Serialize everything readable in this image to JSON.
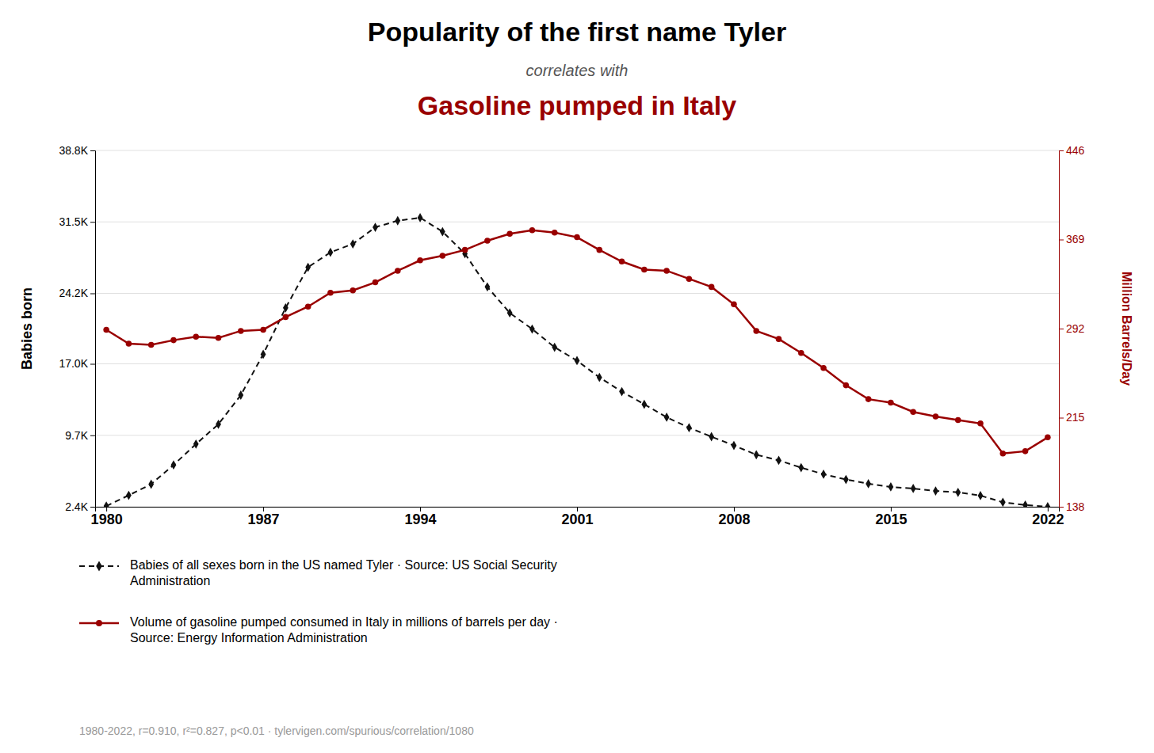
{
  "chart_data": {
    "type": "line",
    "title": "Popularity of the first name Tyler",
    "subtitle": "correlates with",
    "annotations": [
      {
        "text": "Gasoline pumped in Italy",
        "color": "#990000"
      },
      {
        "text": "1980-2022, r=0.910, r²=0.827, p<0.01 · tylervigen.com/spurious/correlation/1080"
      }
    ],
    "ylabel": "Babies born",
    "y2label": "Million Barrels/Day",
    "x": [
      1980,
      1981,
      1982,
      1983,
      1984,
      1985,
      1986,
      1987,
      1988,
      1989,
      1990,
      1991,
      1992,
      1993,
      1994,
      1995,
      1996,
      1997,
      1998,
      1999,
      2000,
      2001,
      2002,
      2003,
      2004,
      2005,
      2006,
      2007,
      2008,
      2009,
      2010,
      2011,
      2012,
      2013,
      2014,
      2015,
      2016,
      2017,
      2018,
      2019,
      2020,
      2021,
      2022
    ],
    "series": [
      {
        "name": "Babies of all sexes born in the US named Tyler · Source: US Social Security\nAdministration",
        "color": "#111111",
        "line_style": "dashed",
        "marker": "diamond",
        "values": [
          2472,
          3568,
          4705,
          6673,
          8801,
          10830,
          13806,
          17978,
          22715,
          26867,
          28388,
          29251,
          30951,
          31622,
          31931,
          30503,
          28252,
          24858,
          22199,
          20552,
          18696,
          17327,
          15615,
          14166,
          12862,
          11542,
          10474,
          9558,
          8660,
          7713,
          7135,
          6399,
          5724,
          5182,
          4753,
          4426,
          4267,
          4012,
          3875,
          3536,
          2858,
          2581,
          2408
        ]
      },
      {
        "name": "Volume of gasoline pumped consumed in Italy in millions of barrels per day ·\nSource: Energy Information Administration",
        "color": "#990000",
        "line_style": "solid",
        "marker": "circle",
        "axis": "y2",
        "values": [
          291,
          279,
          278,
          282,
          285,
          284,
          290,
          291,
          302,
          311,
          323,
          325,
          332,
          342,
          351,
          355,
          360,
          368,
          374,
          377,
          375,
          371,
          360,
          350,
          343,
          342,
          335,
          328,
          313,
          290,
          283,
          271,
          258,
          243,
          231,
          228,
          220,
          216,
          213,
          210,
          184,
          186,
          198
        ]
      }
    ],
    "xlim": [
      1979.5,
      2022.5
    ],
    "xticks": [
      1980,
      1987,
      1994,
      2001,
      2008,
      2015,
      2022
    ],
    "ylim": [
      2400,
      38800
    ],
    "yticks": [
      {
        "value": 2400,
        "label": "2.4K"
      },
      {
        "value": 9700,
        "label": "9.7K"
      },
      {
        "value": 17000,
        "label": "17.0K"
      },
      {
        "value": 24200,
        "label": "24.2K"
      },
      {
        "value": 31500,
        "label": "31.5K"
      },
      {
        "value": 38800,
        "label": "38.8K"
      }
    ],
    "y2lim": [
      138,
      446
    ],
    "y2ticks": [
      138,
      215,
      292,
      369,
      446
    ],
    "grid": true,
    "legend": "bottom"
  }
}
